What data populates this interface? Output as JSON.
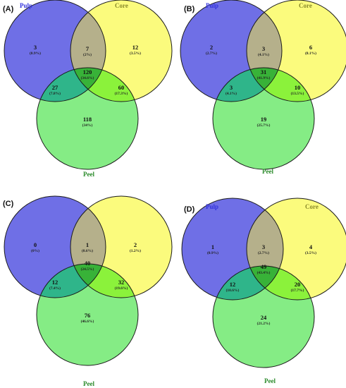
{
  "figure": {
    "set_names": {
      "pulp": "Pulp",
      "core": "Core",
      "peel": "Peel"
    },
    "colors": {
      "pulp_fill": "#6f6fe6",
      "core_fill": "#fbfb7d",
      "peel_fill": "#85ec85",
      "pulp_core_fill": "#b5b08b",
      "pulp_peel_fill": "#2fb58a",
      "core_peel_fill": "#8bf23b",
      "all_fill": "#38b238",
      "stroke": "#1a1a1a",
      "pulp_label": "#3333dd",
      "core_label": "#8a8a2a",
      "peel_label": "#2a8a2a"
    },
    "panels": [
      {
        "label": "(A)",
        "regions": {
          "pulp_only": {
            "count": "3",
            "pct": "(0.9%)"
          },
          "core_only": {
            "count": "12",
            "pct": "(3.5%)"
          },
          "peel_only": {
            "count": "118",
            "pct": "(34%)"
          },
          "pulp_core": {
            "count": "7",
            "pct": "(2%)"
          },
          "pulp_peel": {
            "count": "27",
            "pct": "(7.8%)"
          },
          "core_peel": {
            "count": "60",
            "pct": "(17.3%)"
          },
          "all": {
            "count": "120",
            "pct": "(34.6%)"
          }
        }
      },
      {
        "label": "(B)",
        "regions": {
          "pulp_only": {
            "count": "2",
            "pct": "(2.7%)"
          },
          "core_only": {
            "count": "6",
            "pct": "(8.1%)"
          },
          "peel_only": {
            "count": "19",
            "pct": "(25.7%)"
          },
          "pulp_core": {
            "count": "3",
            "pct": "(4.1%)"
          },
          "pulp_peel": {
            "count": "3",
            "pct": "(4.1%)"
          },
          "core_peel": {
            "count": "10",
            "pct": "(13.5%)"
          },
          "all": {
            "count": "31",
            "pct": "(41.9%)"
          }
        }
      },
      {
        "label": "(C)",
        "regions": {
          "pulp_only": {
            "count": "0",
            "pct": "(0%)"
          },
          "core_only": {
            "count": "2",
            "pct": "(1.2%)"
          },
          "peel_only": {
            "count": "76",
            "pct": "(46.6%)"
          },
          "pulp_core": {
            "count": "1",
            "pct": "(0.6%)"
          },
          "pulp_peel": {
            "count": "12",
            "pct": "(7.4%)"
          },
          "core_peel": {
            "count": "32",
            "pct": "(19.6%)"
          },
          "all": {
            "count": "40",
            "pct": "(24.5%)"
          }
        }
      },
      {
        "label": "(D)",
        "regions": {
          "pulp_only": {
            "count": "1",
            "pct": "(0.9%)"
          },
          "core_only": {
            "count": "4",
            "pct": "(3.5%)"
          },
          "peel_only": {
            "count": "24",
            "pct": "(21.2%)"
          },
          "pulp_core": {
            "count": "3",
            "pct": "(2.7%)"
          },
          "pulp_peel": {
            "count": "12",
            "pct": "(10.6%)"
          },
          "core_peel": {
            "count": "20",
            "pct": "(17.7%)"
          },
          "all": {
            "count": "49",
            "pct": "(43.4%)"
          }
        }
      }
    ]
  }
}
